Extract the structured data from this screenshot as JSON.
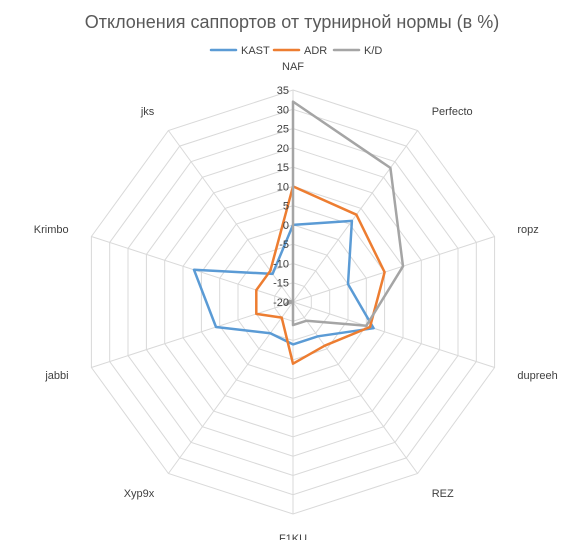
{
  "chart_data": {
    "type": "radar",
    "title": "Отклонения саппортов от турнирной нормы (в %)",
    "categories": [
      "NAF",
      "Perfecto",
      "ropz",
      "dupreeh",
      "REZ",
      "F1KU",
      "Xyp9x",
      "jabbi",
      "Krimbo",
      "jks"
    ],
    "axis_ticks": [
      "-20",
      "-15",
      "-10",
      "-5",
      "0",
      "5",
      "10",
      "15",
      "20",
      "25",
      "30",
      "35"
    ],
    "rlim": [
      -20,
      35
    ],
    "grid": true,
    "legend_position": "top",
    "series": [
      {
        "name": "KAST",
        "color": "#5b9bd5",
        "values": [
          0,
          6,
          -5,
          2,
          -9,
          -9,
          -10,
          1,
          7,
          -11
        ]
      },
      {
        "name": "ADR",
        "color": "#ed7d31",
        "values": [
          10,
          8,
          5,
          1,
          -6,
          -4,
          -15,
          -10,
          -10,
          -10
        ]
      },
      {
        "name": "K/D",
        "color": "#a5a5a5",
        "values": [
          32,
          23,
          10,
          0,
          -14,
          -14,
          -20,
          -18,
          -19,
          -20
        ]
      }
    ]
  }
}
